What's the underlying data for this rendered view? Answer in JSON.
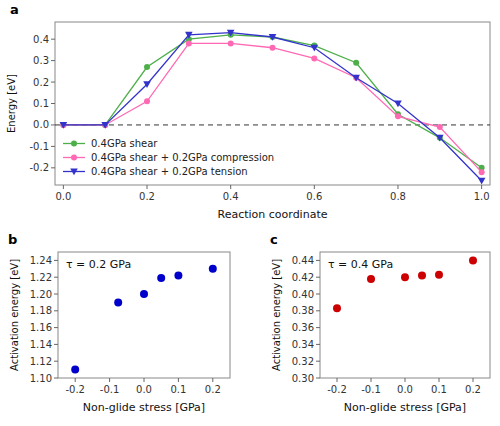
{
  "chart_data": [
    {
      "type": "line",
      "title": "a",
      "x_label": "Reaction coordinate",
      "y_label": "Energy [eV]",
      "x": [
        0.0,
        0.1,
        0.2,
        0.3,
        0.4,
        0.5,
        0.6,
        0.7,
        0.8,
        0.9,
        1.0
      ],
      "series": [
        {
          "name": "0.4GPa shear",
          "color": "#4daf4a",
          "marker": "circle",
          "values": [
            0.0,
            0.0,
            0.27,
            0.4,
            0.42,
            0.41,
            0.37,
            0.29,
            0.05,
            -0.06,
            -0.2
          ]
        },
        {
          "name": "0.4GPa shear + 0.2GPa compression",
          "color": "#ff69b4",
          "marker": "circle",
          "values": [
            0.0,
            0.0,
            0.11,
            0.38,
            0.38,
            0.36,
            0.31,
            0.22,
            0.04,
            -0.01,
            -0.22
          ]
        },
        {
          "name": "0.4GPa shear + 0.2GPa tension",
          "color": "#3333cc",
          "marker": "triangle-down",
          "values": [
            0.0,
            0.0,
            0.19,
            0.42,
            0.43,
            0.41,
            0.36,
            0.22,
            0.1,
            -0.06,
            -0.26
          ]
        }
      ],
      "xlim": [
        -0.02,
        1.02
      ],
      "ylim": [
        -0.28,
        0.48
      ],
      "xticks": [
        {
          "value": 0.0,
          "label": "0.0"
        },
        0.2,
        0.4,
        0.6,
        0.8,
        {
          "value": 1.0,
          "label": "1.0"
        }
      ],
      "yticks": [
        -0.2,
        -0.1,
        {
          "value": 0.0,
          "label": "0.0"
        },
        0.1,
        0.2,
        0.3,
        0.4
      ],
      "hline": 0.0,
      "legend": "lower left",
      "grid": false
    },
    {
      "type": "scatter",
      "title": "b",
      "x_label": "Non-glide stress [GPa]",
      "y_label": "Activation energy [eV]",
      "x": [
        -0.2,
        -0.075,
        0.0,
        0.05,
        0.1,
        0.2
      ],
      "values": [
        1.11,
        1.19,
        1.2,
        1.219,
        1.222,
        1.23
      ],
      "color": "#0000cc",
      "xlim": [
        -0.25,
        0.25
      ],
      "ylim": [
        1.1,
        1.25
      ],
      "xticks": [
        -0.2,
        -0.1,
        {
          "value": 0.0,
          "label": "0.0"
        },
        0.1,
        0.2
      ],
      "yticks": [
        {
          "value": 1.1,
          "label": "1.10"
        },
        1.12,
        1.14,
        1.16,
        1.18,
        {
          "value": 1.2,
          "label": "1.20"
        },
        1.22,
        1.24
      ],
      "annotations": [
        "τ = 0.2 GPa"
      ],
      "grid": false
    },
    {
      "type": "scatter",
      "title": "c",
      "x_label": "Non-glide stress [GPa]",
      "y_label": "Activation energy [eV]",
      "x": [
        -0.2,
        -0.1,
        0.0,
        0.05,
        0.1,
        0.2
      ],
      "values": [
        0.383,
        0.418,
        0.42,
        0.422,
        0.423,
        0.44
      ],
      "color": "#cc0000",
      "xlim": [
        -0.25,
        0.25
      ],
      "ylim": [
        0.3,
        0.45
      ],
      "xticks": [
        -0.2,
        -0.1,
        {
          "value": 0.0,
          "label": "0.0"
        },
        0.1,
        0.2
      ],
      "yticks": [
        {
          "value": 0.3,
          "label": "0.30"
        },
        0.32,
        0.34,
        0.36,
        0.38,
        {
          "value": 0.4,
          "label": "0.40"
        },
        0.42,
        0.44
      ],
      "annotations": [
        "τ = 0.4 GPa"
      ],
      "grid": false
    }
  ]
}
